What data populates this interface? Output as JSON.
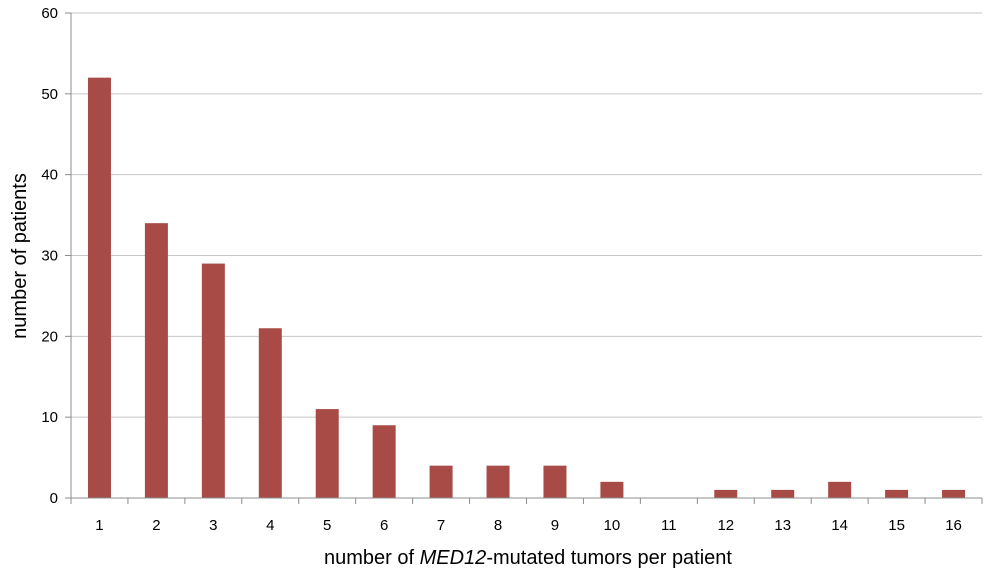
{
  "chart_data": {
    "type": "bar",
    "categories": [
      "1",
      "2",
      "3",
      "4",
      "5",
      "6",
      "7",
      "8",
      "9",
      "10",
      "11",
      "12",
      "13",
      "14",
      "15",
      "16"
    ],
    "values": [
      52,
      34,
      29,
      21,
      11,
      9,
      4,
      4,
      4,
      2,
      0,
      1,
      1,
      2,
      1,
      1
    ],
    "y_ticks": [
      "0",
      "10",
      "20",
      "30",
      "40",
      "50",
      "60"
    ],
    "ylim": [
      0,
      60
    ],
    "xlabel_prefix": "number of ",
    "xlabel_italic": "MED12",
    "xlabel_suffix": "-mutated tumors per patient",
    "ylabel": "number of patients",
    "grid": true,
    "legend": "none",
    "bar_color": "#a84b47"
  }
}
